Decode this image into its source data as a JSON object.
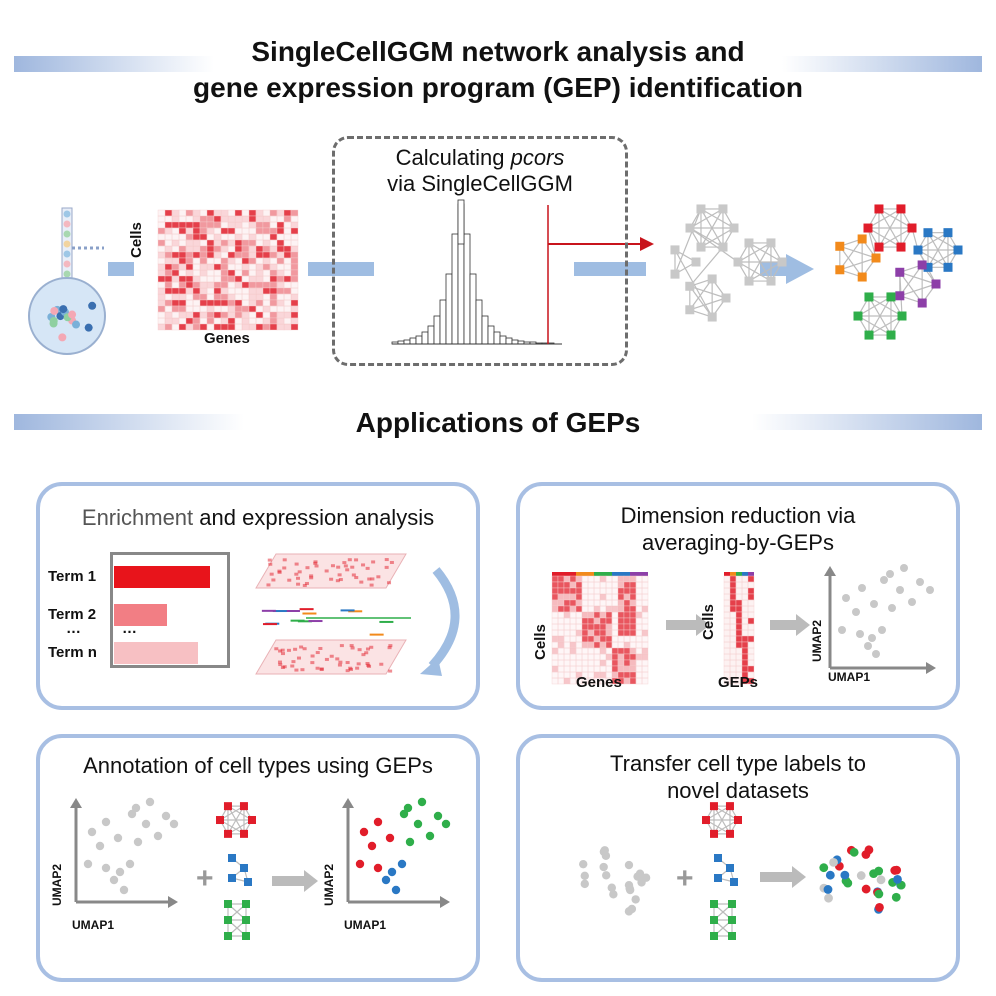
{
  "header": {
    "line1": "SingleCellGGM network analysis and",
    "line2": "gene expression program (GEP) identification"
  },
  "pipeline": {
    "cells_label": "Cells",
    "genes_label": "Genes",
    "calc_line1": "Calculating ",
    "calc_italic": "pcors",
    "calc_line2": "via SingleCellGGM"
  },
  "applications": {
    "title": "Applications of GEPs"
  },
  "panel_enrichment": {
    "title_dark": "Enrichment",
    "title_rest": " and expression analysis",
    "terms": [
      {
        "label": "Term 1",
        "value": 1.0,
        "color": "#e8141b"
      },
      {
        "label": "Term 2",
        "value": 0.55,
        "color": "#f27e84"
      },
      {
        "label": "Term n",
        "value": 0.87,
        "color": "#f7c0c3"
      }
    ],
    "ellipsis": "…",
    "ellipsis_bar": "…"
  },
  "panel_dimred": {
    "title_line1": "Dimension reduction via",
    "title_line2": "averaging-by-GEPs",
    "cells_label": "Cells",
    "genes_label": "Genes",
    "cells_label2": "Cells",
    "geps_label": "GEPs",
    "umap1": "UMAP1",
    "umap2": "UMAP2"
  },
  "panel_annotation": {
    "title": "Annotation of cell types using GEPs",
    "umap1": "UMAP1",
    "umap2": "UMAP2",
    "umap1b": "UMAP1",
    "umap2b": "UMAP2",
    "plus": "+"
  },
  "panel_transfer": {
    "title_line1": "Transfer cell type labels to",
    "title_line2": "novel datasets",
    "plus": "+"
  },
  "colors": {
    "red": "#e11d2a",
    "green": "#2fae4a",
    "blue": "#2a78c4",
    "purple": "#8d3fa8",
    "orange": "#f28a1b",
    "gray": "#c8c8c8",
    "panel_border": "#a8bfe3",
    "arrow_blue": "#9fbde2"
  }
}
